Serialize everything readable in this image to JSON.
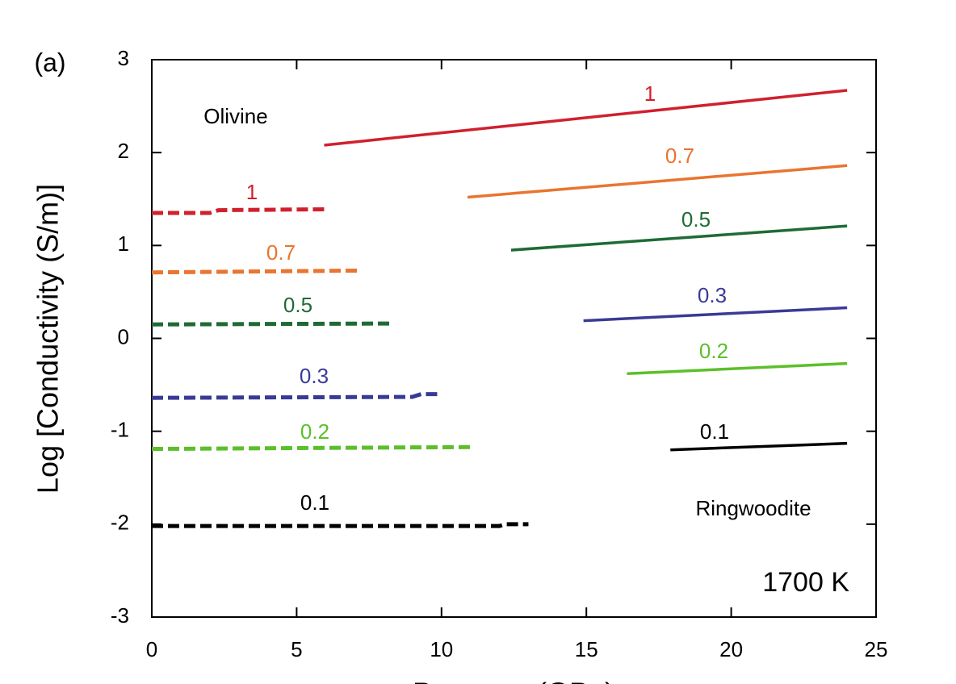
{
  "chart_data": {
    "type": "line",
    "panel_label": "(a)",
    "x_label": "Pressure (GPa)",
    "y_label": "Log [Conductivity (S/m)]",
    "annotations": [
      "Olivine",
      "Ringwoodite",
      "1700 K"
    ],
    "xlim": [
      0,
      25
    ],
    "xticks": [
      0,
      5,
      10,
      15,
      20,
      25
    ],
    "ylim": [
      -3,
      3
    ],
    "yticks": [
      -3,
      -2,
      -1,
      0,
      1,
      2,
      3
    ],
    "series": [
      {
        "name": "1",
        "color": "#d0202e",
        "dashed": true,
        "x": [
          0,
          2,
          2.3,
          6.1
        ],
        "values": [
          1.35,
          1.35,
          1.38,
          1.39
        ]
      },
      {
        "name": "0.7",
        "color": "#e87530",
        "dashed": true,
        "x": [
          0,
          7.2
        ],
        "values": [
          0.71,
          0.73
        ]
      },
      {
        "name": "0.5",
        "color": "#1e6b35",
        "dashed": true,
        "x": [
          0,
          8.3
        ],
        "values": [
          0.15,
          0.16
        ]
      },
      {
        "name": "0.3",
        "color": "#3a3a96",
        "dashed": true,
        "x": [
          0,
          9,
          9.3,
          9.9
        ],
        "values": [
          -0.64,
          -0.63,
          -0.6,
          -0.6
        ]
      },
      {
        "name": "0.2",
        "color": "#5cbf2a",
        "dashed": true,
        "x": [
          0,
          11
        ],
        "values": [
          -1.19,
          -1.17
        ]
      },
      {
        "name": "0.1",
        "color": "#000000",
        "dashed": true,
        "x": [
          0,
          12,
          12.2,
          13
        ],
        "values": [
          -2.02,
          -2.02,
          -2.0,
          -2.0
        ]
      },
      {
        "name": "1",
        "color": "#d0202e",
        "dashed": false,
        "x": [
          5.95,
          24
        ],
        "values": [
          2.08,
          2.67
        ]
      },
      {
        "name": "0.7",
        "color": "#e87530",
        "dashed": false,
        "x": [
          10.9,
          24
        ],
        "values": [
          1.52,
          1.86
        ]
      },
      {
        "name": "0.5",
        "color": "#1e6b35",
        "dashed": false,
        "x": [
          12.4,
          24
        ],
        "values": [
          0.95,
          1.21
        ]
      },
      {
        "name": "0.3",
        "color": "#3a3a96",
        "dashed": false,
        "x": [
          14.9,
          24
        ],
        "values": [
          0.19,
          0.33
        ]
      },
      {
        "name": "0.2",
        "color": "#5cbf2a",
        "dashed": false,
        "x": [
          16.4,
          24
        ],
        "values": [
          -0.38,
          -0.27
        ]
      },
      {
        "name": "0.1",
        "color": "#000000",
        "dashed": false,
        "x": [
          17.9,
          24
        ],
        "values": [
          -1.2,
          -1.13
        ]
      }
    ]
  }
}
